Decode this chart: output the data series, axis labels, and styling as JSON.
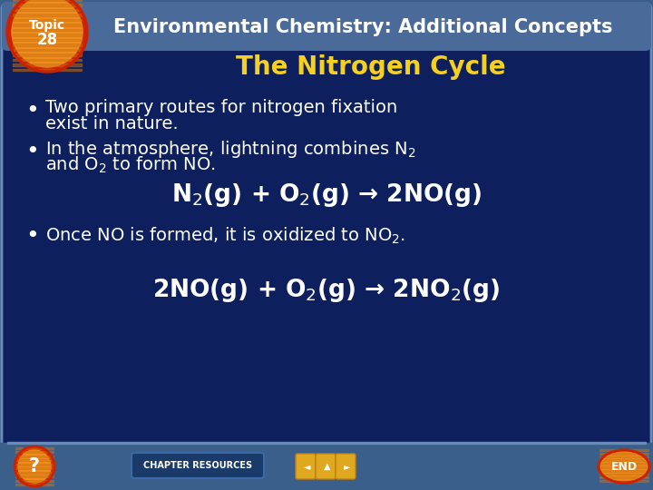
{
  "title": "Environmental Chemistry: Additional Concepts",
  "subtitle": "The Nitrogen Cycle",
  "bullet1_line1": "Two primary routes for nitrogen fixation",
  "bullet1_line2": "exist in nature.",
  "bullet2_line1": "In the atmosphere, lightning combines N$_2$",
  "bullet2_line2": "and O$_2$ to form NO.",
  "equation1": "N$_2$(g) + O$_2$(g) → 2NO(g)",
  "bullet3": "Once NO is formed, it is oxidized to NO$_2$.",
  "equation2": "2NO(g) + O$_2$(g) → 2NO$_2$(g)",
  "bg_outer": "#3a5f8a",
  "bg_inner": "#0d1f5c",
  "title_bar_color": "#4a6a9a",
  "title_color": "#ffffff",
  "subtitle_color": "#f5d020",
  "text_color": "#ffffff",
  "topic_red": "#cc2200",
  "topic_orange": "#f09020",
  "topic_text_color": "#ffffff",
  "equation_color": "#ffffff",
  "border_color": "#6a8ab8",
  "bottom_bar": "#2a4f7a",
  "nav_color": "#e0a820",
  "chap_res_bg": "#1a3a6a",
  "chap_res_border": "#3a6aaa"
}
